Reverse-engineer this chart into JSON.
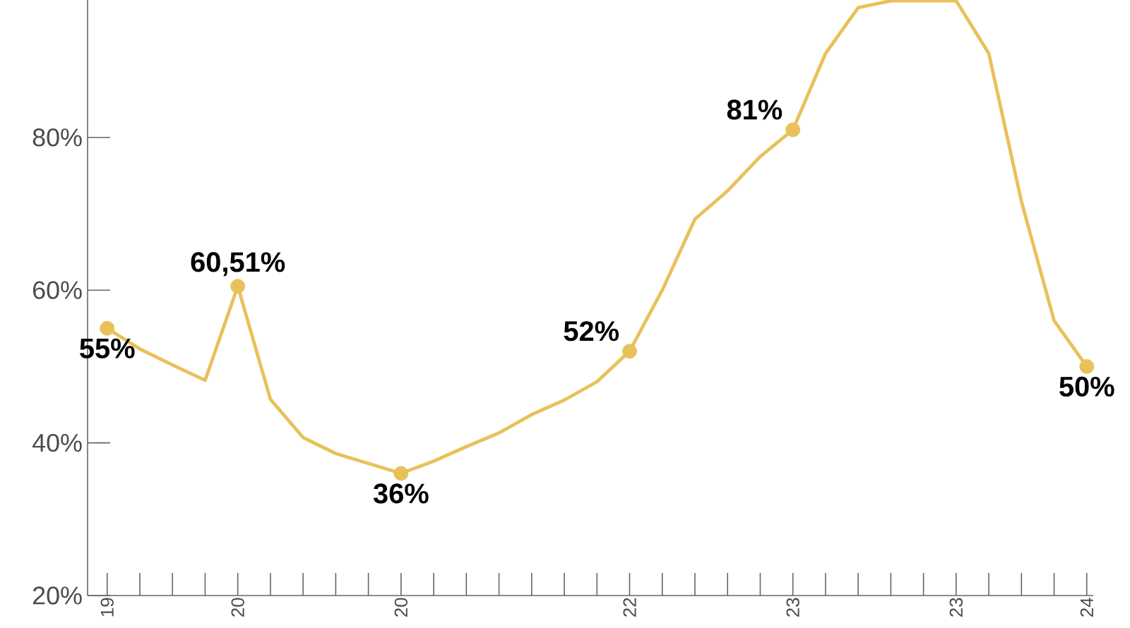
{
  "chart_data": {
    "type": "line",
    "categories": [
      "19",
      null,
      null,
      null,
      "20",
      null,
      null,
      null,
      null,
      "20",
      null,
      null,
      null,
      null,
      null,
      null,
      "22",
      null,
      null,
      null,
      null,
      "23",
      null,
      null,
      null,
      null,
      "23",
      null,
      null,
      null,
      "24"
    ],
    "ylim": [
      20,
      98
    ],
    "yticks": [
      {
        "value": 20,
        "label": "20%"
      },
      {
        "value": 40,
        "label": "40%"
      },
      {
        "value": 60,
        "label": "60%"
      },
      {
        "value": 80,
        "label": "80%"
      }
    ],
    "series": [
      {
        "color": "#e8c15a",
        "marker": "none",
        "values": [
          55,
          52.3,
          50.2,
          48.2,
          60.51,
          45.7,
          40.7,
          38.6,
          37.3,
          36,
          37.6,
          39.5,
          41.3,
          43.7,
          45.6,
          48,
          52,
          60,
          69.3,
          73,
          77.5,
          81,
          91,
          97,
          97.9,
          97.9,
          97.9,
          91,
          71.6,
          56,
          50
        ]
      },
      {
        "type": "scatter",
        "color": "#e8c15a",
        "marker": "circle",
        "values": [
          55,
          null,
          null,
          null,
          60.51,
          null,
          null,
          null,
          null,
          36,
          null,
          null,
          null,
          null,
          null,
          null,
          52,
          null,
          null,
          null,
          null,
          81,
          null,
          null,
          null,
          null,
          null,
          null,
          null,
          null,
          50
        ],
        "value_labels": [
          "55%",
          null,
          null,
          null,
          "60,51%",
          null,
          null,
          null,
          null,
          "36%",
          null,
          null,
          null,
          null,
          null,
          null,
          "52%",
          null,
          null,
          null,
          null,
          "81%",
          null,
          null,
          null,
          null,
          null,
          null,
          null,
          null,
          "50%"
        ]
      }
    ]
  }
}
